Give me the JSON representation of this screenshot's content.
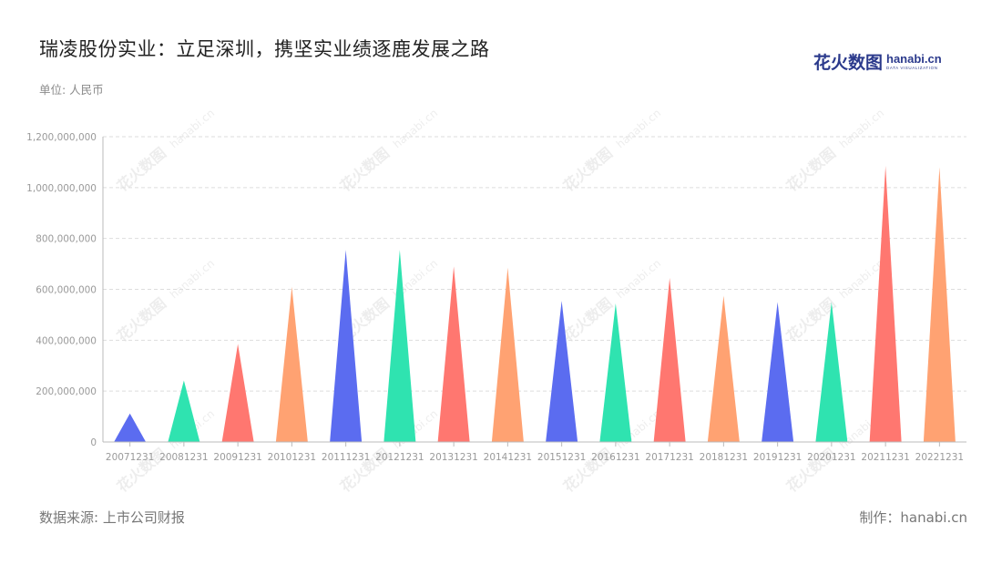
{
  "header": {
    "title": "瑞凌股份实业：立足深圳，携坚实业绩逐鹿发展之路",
    "unit_label": "单位: 人民币"
  },
  "logo": {
    "cn": "花火数图",
    "en": "hanabi.cn",
    "sub": "DATA VISUALIZATION"
  },
  "footer": {
    "source": "数据来源: 上市公司财报",
    "credit": "制作：hanabi.cn"
  },
  "watermark": {
    "cn": "花火数图",
    "en": "hanabi.cn"
  },
  "colors": {
    "palette": [
      "#5b6cf0",
      "#2fe3b0",
      "#ff7770",
      "#ffa272"
    ],
    "grid": "#dddddd",
    "axis": "#bbbbbb"
  },
  "chart_data": {
    "type": "bar",
    "mark_shape": "triangle",
    "categories": [
      "20071231",
      "20081231",
      "20091231",
      "20101231",
      "20111231",
      "20121231",
      "20131231",
      "20141231",
      "20151231",
      "20161231",
      "20171231",
      "20181231",
      "20191231",
      "20201231",
      "20211231",
      "20221231"
    ],
    "series": [
      {
        "values": [
          112000000,
          242000000,
          385000000,
          610000000,
          755000000,
          755000000,
          690000000,
          685000000,
          555000000,
          545000000,
          645000000,
          575000000,
          550000000,
          550000000,
          1085000000,
          1080000000
        ]
      }
    ],
    "ylim": [
      0,
      1200000000
    ],
    "yticks": [
      0,
      200000000,
      400000000,
      600000000,
      800000000,
      1000000000,
      1200000000
    ],
    "ytick_labels": [
      "0",
      "200,000,000",
      "400,000,000",
      "600,000,000",
      "800,000,000",
      "1,000,000,000",
      "1,200,000,000"
    ],
    "grid": true,
    "legend": "none"
  }
}
